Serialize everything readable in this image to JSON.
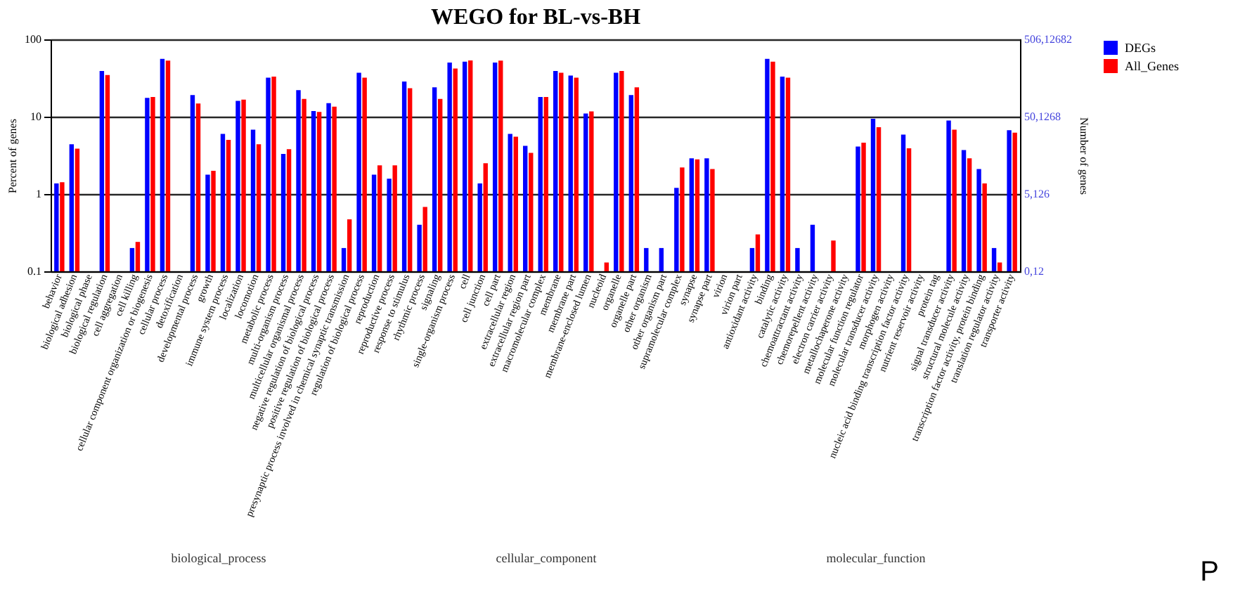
{
  "chart_data": {
    "type": "bar",
    "title": "WEGO for BL-vs-BH",
    "ylabel": "Percent of genes",
    "y2label": "Number of genes",
    "categories": [
      "behavior",
      "biological adhesion",
      "biological phase",
      "biological regulation",
      "cell aggregation",
      "cell killing",
      "cellular component organization or biogenesis",
      "cellular process",
      "detoxification",
      "developmental process",
      "growth",
      "immune system process",
      "localization",
      "locomotion",
      "metabolic process",
      "multi-organism process",
      "multicellular organismal process",
      "negative regulation of biological process",
      "positive regulation of biological process",
      "presynaptic process involved in chemical synaptic transmission",
      "regulation of biological process",
      "reproduction",
      "reproductive process",
      "response to stimulus",
      "rhythmic process",
      "signaling",
      "single-organism process",
      "cell",
      "cell junction",
      "cell part",
      "extracellular region",
      "extracellular region part",
      "macromolecular complex",
      "membrane",
      "membrane part",
      "membrane-enclosed lumen",
      "nucleoid",
      "organelle",
      "organelle part",
      "other organism",
      "other organism part",
      "supramolecular complex",
      "synapse",
      "synapse part",
      "virion",
      "virion part",
      "antioxidant activity",
      "binding",
      "catalytic activity",
      "chemoattractant activity",
      "chemorepellent activity",
      "electron carrier activity",
      "metallochaperone activity",
      "molecular function regulator",
      "molecular transducer activity",
      "morphogen activity",
      "nucleic acid binding transcription factor activity",
      "nutrient reservoir activity",
      "protein tag",
      "signal transducer activity",
      "structural molecule activity",
      "transcription factor activity, protein binding",
      "translation regulator activity",
      "transporter activity"
    ],
    "series": [
      {
        "name": "DEGs",
        "color": "#0000ff",
        "values": [
          1.37,
          4.4,
          null,
          39,
          null,
          0.2,
          17.5,
          56,
          null,
          19,
          1.78,
          6,
          16,
          6.8,
          32,
          3.3,
          22,
          11.8,
          15,
          0.2,
          37,
          1.78,
          1.58,
          28.5,
          0.4,
          24,
          50,
          51.5,
          1.37,
          50,
          6,
          4.2,
          18,
          39,
          34,
          11,
          null,
          37,
          19,
          0.2,
          0.2,
          1.2,
          2.9,
          2.9,
          null,
          null,
          0.2,
          56,
          33,
          0.2,
          0.4,
          null,
          null,
          4.1,
          9.4,
          null,
          5.85,
          null,
          null,
          8.9,
          3.7,
          2.1,
          0.2,
          6.7
        ]
      },
      {
        "name": "All_Genes",
        "color": "#ff0000",
        "values": [
          1.42,
          3.85,
          null,
          34.6,
          null,
          0.24,
          18,
          53,
          null,
          14.8,
          2,
          5,
          16.6,
          4.4,
          33,
          3.8,
          17,
          11.5,
          13.5,
          0.47,
          32,
          2.35,
          2.35,
          23.4,
          0.68,
          17,
          42,
          53.5,
          2.5,
          53,
          5.5,
          3.4,
          18,
          37,
          32,
          11.7,
          0.13,
          39,
          24,
          null,
          null,
          2.2,
          2.8,
          2.1,
          null,
          null,
          0.3,
          51.5,
          32,
          null,
          null,
          0.25,
          null,
          4.6,
          7.3,
          null,
          3.9,
          null,
          null,
          6.8,
          2.9,
          1.37,
          0.13,
          6.2
        ]
      }
    ],
    "log": true,
    "ylim": [
      0.1,
      100
    ],
    "yticks": [
      0.1,
      1,
      10,
      100
    ],
    "grid": "y",
    "legend": "right",
    "annotations": [
      "0,12",
      "5,126",
      "50,1268",
      "506,12682",
      "biological_process",
      "cellular_component",
      "molecular_function",
      "P"
    ]
  }
}
